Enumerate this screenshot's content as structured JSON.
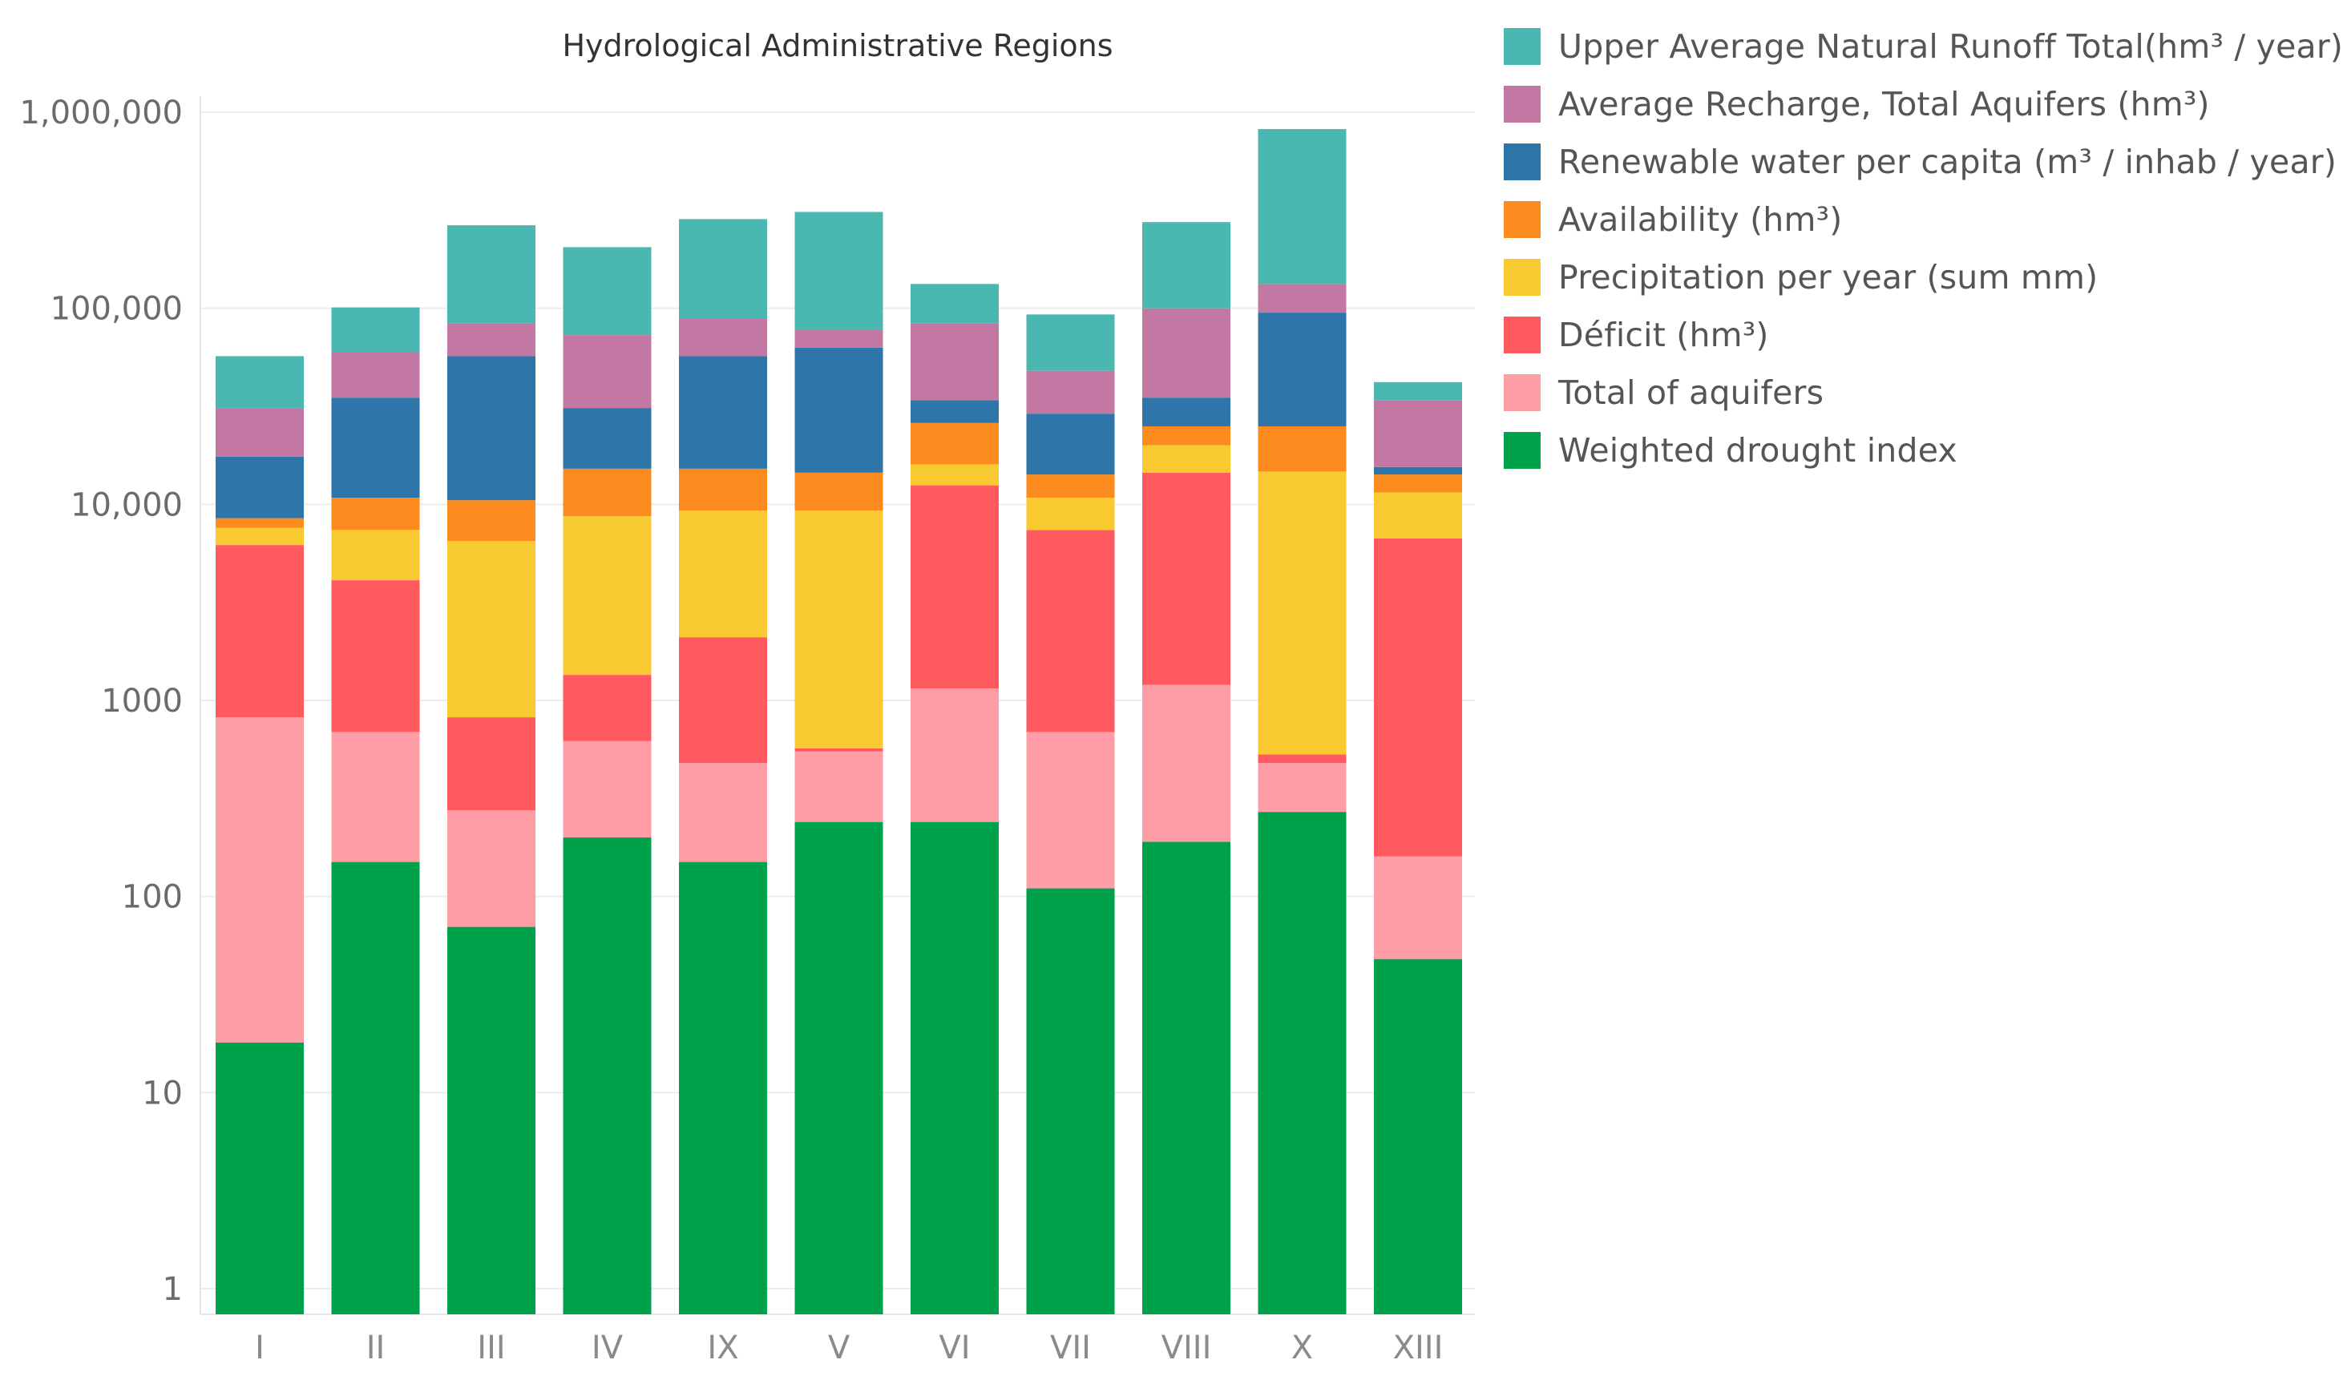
{
  "chart_data": {
    "type": "bar",
    "stacked": true,
    "yscale": "log",
    "title": "Hydrological Administrative Regions",
    "xlabel": "",
    "ylabel": "",
    "ylim": [
      0.8,
      1600000
    ],
    "y_ticks": [
      {
        "value": 1,
        "label": "1"
      },
      {
        "value": 10,
        "label": "10"
      },
      {
        "value": 100,
        "label": "100"
      },
      {
        "value": 1000,
        "label": "1000"
      },
      {
        "value": 10000,
        "label": "10,000"
      },
      {
        "value": 100000,
        "label": "100,000"
      },
      {
        "value": 1000000,
        "label": "1,000,000"
      }
    ],
    "categories": [
      "I",
      "II",
      "III",
      "IV",
      "IX",
      "V",
      "VI",
      "VII",
      "VIII",
      "X",
      "XIII"
    ],
    "legend_position": "right",
    "series": [
      {
        "name": "Weighted drought index",
        "color": "#00A14B",
        "cumulative_top": [
          18,
          150,
          70,
          200,
          150,
          240,
          240,
          110,
          190,
          270,
          48
        ]
      },
      {
        "name": "Total of aquifers",
        "color": "#FF9DA7",
        "cumulative_top": [
          820,
          690,
          275,
          620,
          480,
          550,
          1150,
          690,
          1200,
          480,
          160
        ]
      },
      {
        "name": "Déficit (hm³)",
        "color": "#FF5A5F",
        "cumulative_top": [
          6200,
          4100,
          820,
          1350,
          2100,
          570,
          12500,
          7400,
          14500,
          530,
          6700
        ]
      },
      {
        "name": "Precipitation per year (sum mm)",
        "color": "#F9C932",
        "cumulative_top": [
          7600,
          7400,
          6500,
          8700,
          9300,
          9300,
          16000,
          10800,
          20000,
          14700,
          11500
        ]
      },
      {
        "name": "Availability (hm³)",
        "color": "#FB8B1E",
        "cumulative_top": [
          8500,
          10800,
          10500,
          15200,
          15200,
          14500,
          26000,
          14200,
          25000,
          25000,
          14200
        ]
      },
      {
        "name": "Renewable water per capita (m³ / inhab / year)",
        "color": "#2E75AA",
        "cumulative_top": [
          17500,
          35000,
          57000,
          31000,
          57000,
          63000,
          34000,
          29000,
          35000,
          95000,
          15500
        ]
      },
      {
        "name": "Average Recharge, Total Aquifers (hm³)",
        "color": "#C278A3",
        "cumulative_top": [
          31000,
          60000,
          84000,
          73000,
          89000,
          78000,
          84000,
          48000,
          100000,
          133000,
          34000
        ]
      },
      {
        "name": "Upper Average Natural Runoff Total(hm³ / year)",
        "color": "#4AB8B0",
        "cumulative_top": [
          57000,
          101000,
          265000,
          205000,
          285000,
          310000,
          133000,
          93000,
          275000,
          820000,
          42000
        ]
      }
    ]
  },
  "legend": {
    "items": [
      {
        "label": "Upper Average Natural Runoff Total(hm³ / year)",
        "color": "#4AB8B0"
      },
      {
        "label": "Average Recharge, Total Aquifers (hm³)",
        "color": "#C278A3"
      },
      {
        "label": "Renewable water per capita (m³ / inhab / year)",
        "color": "#2E75AA"
      },
      {
        "label": "Availability (hm³)",
        "color": "#FB8B1E"
      },
      {
        "label": "Precipitation per year (sum mm)",
        "color": "#F9C932"
      },
      {
        "label": "Déficit (hm³)",
        "color": "#FF5A5F"
      },
      {
        "label": "Total of aquifers",
        "color": "#FF9DA7"
      },
      {
        "label": "Weighted drought index",
        "color": "#00A14B"
      }
    ]
  }
}
